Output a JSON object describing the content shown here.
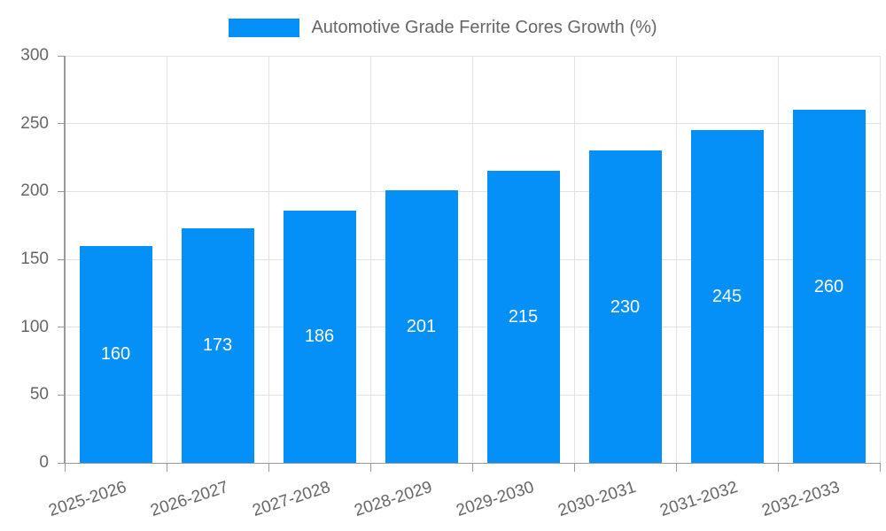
{
  "legend": {
    "label": "Automotive Grade Ferrite Cores Growth (%)"
  },
  "chart_data": {
    "type": "bar",
    "title": "",
    "series_name": "Automotive Grade Ferrite Cores Growth (%)",
    "categories": [
      "2025-2026",
      "2026-2027",
      "2027-2028",
      "2028-2029",
      "2029-2030",
      "2030-2031",
      "2031-2032",
      "2032-2033"
    ],
    "values": [
      160,
      173,
      186,
      201,
      215,
      230,
      245,
      260
    ],
    "xlabel": "",
    "ylabel": "",
    "ylim": [
      0,
      300
    ],
    "yticks": [
      0,
      50,
      100,
      150,
      200,
      250,
      300
    ],
    "grid": true,
    "legend_position": "top-center",
    "x_label_rotation_deg": -18,
    "colors": {
      "bar": "#0590f8",
      "value_label": "#ffffff",
      "axis": "#999999",
      "gridline": "#e2e2e2",
      "text": "#666666"
    }
  }
}
